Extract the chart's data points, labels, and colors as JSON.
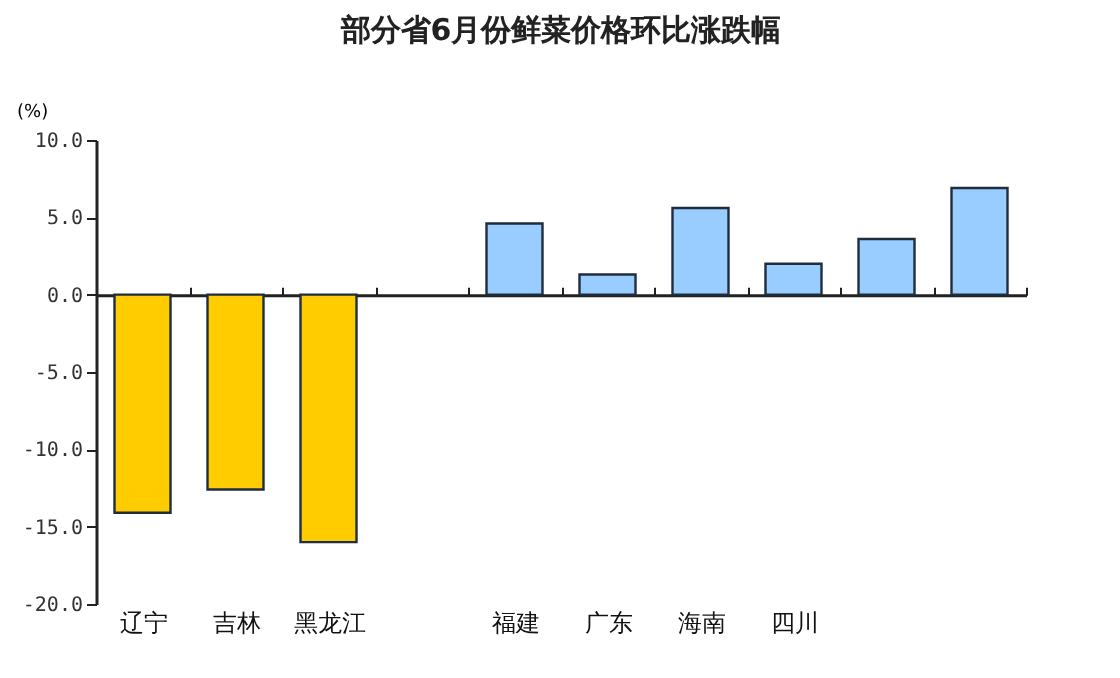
{
  "chart_data": {
    "type": "bar",
    "title": "部分省6月份鲜菜价格环比涨跌幅",
    "ylabel": "(%)",
    "categories": [
      "辽宁",
      "吉林",
      "黑龙江",
      null,
      "福建",
      "广东",
      "海南",
      "四川",
      null,
      null
    ],
    "values": [
      -14.1,
      -12.6,
      -16.0,
      null,
      4.6,
      1.3,
      5.6,
      2.0,
      3.6,
      6.9
    ],
    "colors": [
      "#ffcc00",
      "#ffcc00",
      "#ffcc00",
      null,
      "#99ccff",
      "#99ccff",
      "#99ccff",
      "#99ccff",
      "#99ccff",
      "#99ccff"
    ],
    "ylim": [
      -20,
      10
    ],
    "yticks": [
      {
        "value": -20,
        "label": "-20.0"
      },
      {
        "value": -15,
        "label": "-15.0"
      },
      {
        "value": -10,
        "label": "-10.0"
      },
      {
        "value": -5,
        "label": "-5.0"
      },
      {
        "value": 0,
        "label": "0.0"
      },
      {
        "value": 5,
        "label": "5.0"
      },
      {
        "value": 10,
        "label": "10.0"
      }
    ],
    "tick_labels": true
  }
}
